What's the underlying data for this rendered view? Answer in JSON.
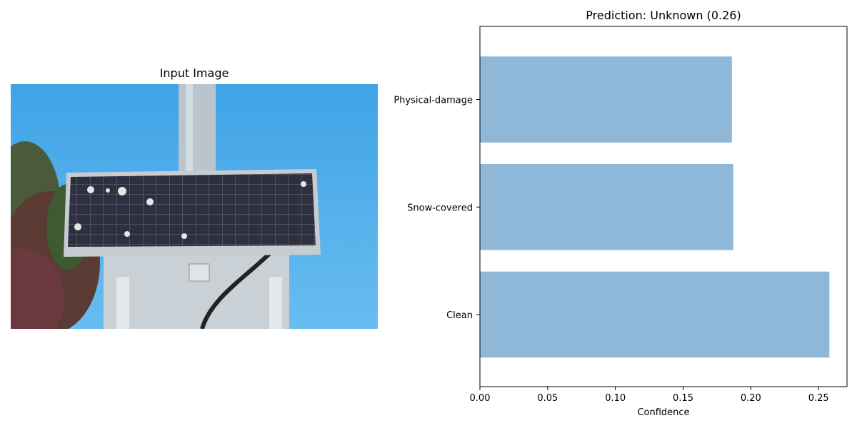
{
  "input_panel": {
    "title": "Input Image",
    "image_description_icon": "solar-panel-photo"
  },
  "chart_data": {
    "type": "bar",
    "orientation": "horizontal",
    "title": "Prediction: Unknown (0.26)",
    "categories": [
      "Clean",
      "Snow-covered",
      "Physical-damage"
    ],
    "values": [
      0.258,
      0.187,
      0.186
    ],
    "xlabel": "Confidence",
    "ylabel": "",
    "xlim": [
      0,
      0.271
    ],
    "xticks": [
      "0.00",
      "0.05",
      "0.10",
      "0.15",
      "0.20",
      "0.25"
    ],
    "xtick_values": [
      0,
      0.05,
      0.1,
      0.15,
      0.2,
      0.25
    ],
    "grid": false,
    "bar_color": "#8fb8d8"
  }
}
